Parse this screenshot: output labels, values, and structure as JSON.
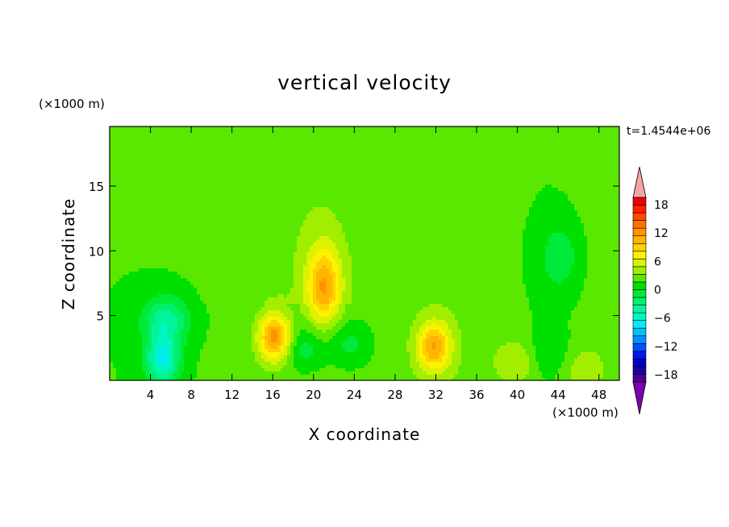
{
  "chart_data": {
    "type": "heatmap",
    "title": "vertical velocity",
    "xlabel": "X coordinate",
    "ylabel": "Z coordinate",
    "x_unit": "(×1000 m)",
    "y_unit": "(×1000 m)",
    "time_label": "t=1.4544e+06",
    "xlim": [
      0,
      50
    ],
    "ylim": [
      0,
      19.6
    ],
    "x_ticks": [
      4,
      8,
      12,
      16,
      20,
      24,
      28,
      32,
      36,
      40,
      44,
      48
    ],
    "y_ticks": [
      5,
      10,
      15
    ],
    "colorbar": {
      "levels": [
        -21,
        -19.5,
        -18,
        -16.5,
        -15,
        -13.5,
        -12,
        -10.5,
        -9,
        -7.5,
        -6,
        -4.5,
        -3,
        -1.5,
        0,
        1.5,
        3,
        4.5,
        6,
        7.5,
        9,
        10.5,
        12,
        13.5,
        15,
        16.5,
        18,
        19.5,
        21
      ],
      "tick_labels": [
        "18",
        "12",
        "6",
        "0",
        "−6",
        "−12",
        "−18"
      ],
      "tick_values": [
        18,
        12,
        6,
        0,
        -6,
        -12,
        -18
      ],
      "extend": "both"
    },
    "colors": [
      "#7a00b0",
      "#4b0097",
      "#1d00a0",
      "#0000c8",
      "#0018e8",
      "#0050ff",
      "#0090ff",
      "#00c0ff",
      "#00ecf2",
      "#00f7c2",
      "#00f59a",
      "#00f06a",
      "#00ea3a",
      "#00e000",
      "#5ae800",
      "#a2ee00",
      "#dcf200",
      "#fff200",
      "#ffd000",
      "#ffb400",
      "#ff9400",
      "#ff7000",
      "#ff4800",
      "#ff2000",
      "#f00000",
      "#f4a4a4"
    ],
    "field_features": [
      {
        "x": 16.2,
        "z": 3.3,
        "w": 9.5
      },
      {
        "x": 21.0,
        "z": 7.3,
        "w": 8.0
      },
      {
        "x": 31.8,
        "z": 2.6,
        "w": 8.0
      },
      {
        "x": 40.0,
        "z": 1.4,
        "w": 3.0
      },
      {
        "x": 46.2,
        "z": 0.9,
        "w": 2.0
      },
      {
        "x": 5.5,
        "z": 4.6,
        "w": -5.5
      },
      {
        "x": 5.2,
        "z": 1.6,
        "w": -8.0
      },
      {
        "x": 19.0,
        "z": 2.5,
        "w": -3.0
      },
      {
        "x": 23.5,
        "z": 2.8,
        "w": -2.5
      },
      {
        "x": 44.2,
        "z": 9.5,
        "w": -2.5
      },
      {
        "x": 43.0,
        "z": 2.0,
        "w": -2.0
      }
    ],
    "background_w": -1.5,
    "grid": false
  }
}
